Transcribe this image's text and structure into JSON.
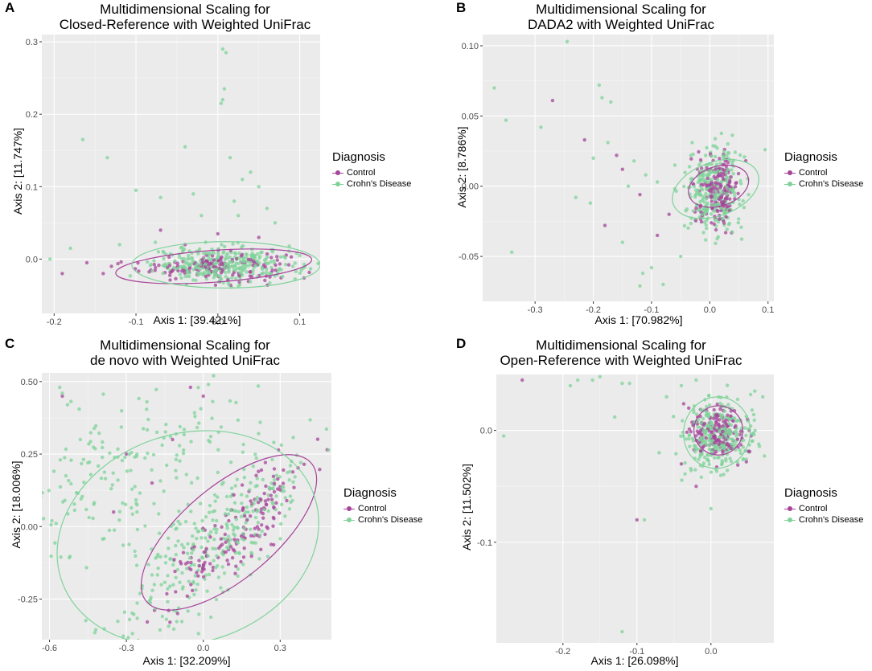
{
  "legend": {
    "title": "Diagnosis",
    "entries": [
      "Control",
      "Crohn's Disease"
    ],
    "colors": {
      "Control": "#a6449a",
      "Crohn's Disease": "#7fd39a"
    }
  },
  "chart_data": [
    {
      "type": "scatter",
      "panel": "A",
      "title_line1": "Multidimensional Scaling for",
      "title_line2": "Closed-Reference with Weighted UniFrac",
      "xlabel": "Axis 1: [39.421%]",
      "ylabel": "Axis 2: [11.747%]",
      "xlim": [
        -0.215,
        0.125
      ],
      "ylim": [
        -0.075,
        0.31
      ],
      "xticks": [
        -0.2,
        -0.1,
        0.0,
        0.1
      ],
      "xtick_labels": [
        "-0.2",
        "-0.1",
        "0.0",
        "0.1"
      ],
      "yticks": [
        0.0,
        0.1,
        0.2,
        0.3
      ],
      "ytick_labels": [
        "0.0",
        "0.1",
        "0.2",
        "0.3"
      ],
      "ellipses": [
        {
          "group": "Control",
          "cx": -0.005,
          "cy": -0.01,
          "rx": 0.12,
          "ry": 0.022,
          "angle": 4
        },
        {
          "group": "Crohn's Disease",
          "cx": 0.01,
          "cy": -0.008,
          "rx": 0.115,
          "ry": 0.032,
          "angle": 0
        }
      ],
      "clusters": [
        {
          "group": "Control",
          "n": 150,
          "cx": -0.005,
          "cy": -0.01,
          "sx": 0.045,
          "sy": 0.01,
          "angle": 0
        },
        {
          "group": "Crohn's Disease",
          "n": 340,
          "cx": 0.01,
          "cy": -0.008,
          "sx": 0.045,
          "sy": 0.012,
          "angle": 0
        }
      ],
      "points": {
        "Control": [
          [
            -0.19,
            -0.02
          ],
          [
            -0.14,
            -0.02
          ],
          [
            -0.13,
            -0.01
          ],
          [
            -0.07,
            0.04
          ],
          [
            0.0,
            0.035
          ],
          [
            -0.04,
            0.02
          ],
          [
            -0.16,
            -0.005
          ],
          [
            0.05,
            0.03
          ]
        ],
        "Crohn's Disease": [
          [
            -0.18,
            0.015
          ],
          [
            -0.165,
            0.165
          ],
          [
            -0.135,
            0.14
          ],
          [
            -0.1,
            0.095
          ],
          [
            -0.07,
            0.085
          ],
          [
            0.006,
            0.29
          ],
          [
            0.01,
            0.285
          ],
          [
            0.008,
            0.235
          ],
          [
            0.006,
            0.22
          ],
          [
            0.004,
            0.215
          ],
          [
            -0.04,
            0.155
          ],
          [
            0.03,
            0.11
          ],
          [
            0.04,
            0.12
          ],
          [
            0.05,
            0.1
          ],
          [
            0.02,
            0.08
          ],
          [
            -0.02,
            0.06
          ],
          [
            0.06,
            0.07
          ],
          [
            0.07,
            0.05
          ],
          [
            -0.205,
            0.0
          ],
          [
            -0.12,
            0.02
          ],
          [
            0.1,
            0.005
          ],
          [
            -0.03,
            0.09
          ],
          [
            0.015,
            0.14
          ],
          [
            0.025,
            0.06
          ]
        ]
      }
    },
    {
      "type": "scatter",
      "panel": "B",
      "title_line1": "Multidimensional Scaling for",
      "title_line2": "DADA2 with Weighted UniFrac",
      "xlabel": "Axis 1: [70.982%]",
      "ylabel": "Axis 2: [8.786%]",
      "xlim": [
        -0.39,
        0.11
      ],
      "ylim": [
        -0.082,
        0.108
      ],
      "xticks": [
        -0.3,
        -0.2,
        -0.1,
        0.0,
        0.1
      ],
      "xtick_labels": [
        "-0.3",
        "-0.2",
        "-0.1",
        "0.0",
        "0.1"
      ],
      "yticks": [
        -0.05,
        0.0,
        0.05,
        0.1
      ],
      "ytick_labels": [
        "-0.05",
        "0.00",
        "0.05",
        "0.10"
      ],
      "ellipses": [
        {
          "group": "Control",
          "cx": 0.015,
          "cy": 0.0,
          "rx": 0.034,
          "ry": 0.022,
          "angle": -72
        },
        {
          "group": "Crohn's Disease",
          "cx": 0.01,
          "cy": -0.002,
          "rx": 0.046,
          "ry": 0.032,
          "angle": -70
        }
      ],
      "clusters": [
        {
          "group": "Control",
          "n": 180,
          "cx": 0.015,
          "cy": -0.002,
          "sx": 0.018,
          "sy": 0.012,
          "angle": 0
        },
        {
          "group": "Crohn's Disease",
          "n": 280,
          "cx": 0.005,
          "cy": -0.004,
          "sx": 0.025,
          "sy": 0.016,
          "angle": 0
        }
      ],
      "points": {
        "Control": [
          [
            -0.27,
            0.061
          ],
          [
            -0.215,
            0.033
          ],
          [
            -0.16,
            0.022
          ],
          [
            -0.15,
            0.012
          ],
          [
            -0.12,
            -0.006
          ],
          [
            -0.07,
            -0.02
          ],
          [
            -0.09,
            -0.035
          ],
          [
            -0.18,
            -0.028
          ]
        ],
        "Crohn's Disease": [
          [
            -0.37,
            0.07
          ],
          [
            -0.35,
            0.047
          ],
          [
            -0.34,
            -0.047
          ],
          [
            -0.29,
            0.042
          ],
          [
            -0.245,
            0.103
          ],
          [
            -0.23,
            -0.008
          ],
          [
            -0.205,
            -0.012
          ],
          [
            -0.19,
            0.072
          ],
          [
            -0.185,
            0.063
          ],
          [
            -0.175,
            0.031
          ],
          [
            -0.17,
            0.06
          ],
          [
            -0.13,
            0.018
          ],
          [
            -0.12,
            -0.071
          ],
          [
            -0.115,
            -0.062
          ],
          [
            -0.1,
            -0.058
          ],
          [
            -0.08,
            -0.07
          ],
          [
            0.095,
            0.026
          ],
          [
            -0.2,
            0.02
          ],
          [
            -0.14,
            0.0
          ],
          [
            -0.06,
            0.015
          ],
          [
            -0.05,
            -0.05
          ],
          [
            -0.15,
            -0.04
          ],
          [
            -0.11,
            0.008
          ],
          [
            -0.09,
            0.003
          ]
        ]
      }
    },
    {
      "type": "scatter",
      "panel": "C",
      "title_line1": "Multidimensional Scaling for",
      "title_line2": "de novo with Weighted UniFrac",
      "xlabel": "Axis 1: [32.209%]",
      "ylabel": "Axis 2: [18.006%]",
      "xlim": [
        -0.63,
        0.5
      ],
      "ylim": [
        -0.39,
        0.53
      ],
      "xticks": [
        -0.6,
        -0.3,
        0.0,
        0.3
      ],
      "xtick_labels": [
        "-0.6",
        "-0.3",
        "0.0",
        "0.3"
      ],
      "yticks": [
        -0.25,
        0.0,
        0.25,
        0.5
      ],
      "ytick_labels": [
        "-0.25",
        "0.00",
        "0.25",
        "0.50"
      ],
      "ellipses": [
        {
          "group": "Control",
          "cx": 0.1,
          "cy": -0.02,
          "rx": 0.42,
          "ry": 0.16,
          "angle": 40
        },
        {
          "group": "Crohn's Disease",
          "cx": -0.06,
          "cy": -0.04,
          "rx": 0.52,
          "ry": 0.36,
          "angle": 18
        }
      ],
      "clusters": [
        {
          "group": "Control",
          "n": 160,
          "cx": 0.15,
          "cy": 0.0,
          "sx": 0.19,
          "sy": 0.05,
          "angle": 42
        },
        {
          "group": "Crohn's Disease",
          "n": 300,
          "cx": 0.05,
          "cy": -0.04,
          "sx": 0.22,
          "sy": 0.08,
          "angle": 40
        },
        {
          "group": "Crohn's Disease",
          "n": 110,
          "cx": -0.38,
          "cy": 0.15,
          "sx": 0.12,
          "sy": 0.16,
          "angle": -60
        },
        {
          "group": "Crohn's Disease",
          "n": 60,
          "cx": -0.12,
          "cy": 0.3,
          "sx": 0.22,
          "sy": 0.08,
          "angle": 0
        }
      ],
      "points": {
        "Control": [
          [
            -0.55,
            0.45
          ],
          [
            -0.3,
            0.25
          ],
          [
            -0.12,
            0.3
          ],
          [
            -0.05,
            0.48
          ],
          [
            0.0,
            0.45
          ],
          [
            -0.2,
            0.15
          ],
          [
            -0.35,
            0.05
          ],
          [
            -0.13,
            -0.33
          ],
          [
            -0.1,
            -0.3
          ]
        ],
        "Crohn's Disease": [
          [
            -0.56,
            0.48
          ],
          [
            -0.55,
            0.46
          ],
          [
            -0.53,
            0.42
          ],
          [
            0.04,
            0.52
          ],
          [
            -0.22,
            0.43
          ],
          [
            0.02,
            0.49
          ],
          [
            -0.48,
            0.3
          ],
          [
            -0.45,
            0.22
          ]
        ]
      }
    },
    {
      "type": "scatter",
      "panel": "D",
      "title_line1": "Multidimensional Scaling for",
      "title_line2": "Open-Reference with Weighted UniFrac",
      "xlabel": "Axis 1: [26.098%]",
      "ylabel": "Axis 2: [11.502%]",
      "xlim": [
        -0.29,
        0.085
      ],
      "ylim": [
        -0.19,
        0.05
      ],
      "xticks": [
        -0.2,
        -0.1,
        0.0
      ],
      "xtick_labels": [
        "-0.2",
        "-0.1",
        "0.0"
      ],
      "yticks": [
        -0.1,
        0.0
      ],
      "ytick_labels": [
        "-0.1",
        "0.0"
      ],
      "ellipses": [
        {
          "group": "Control",
          "cx": 0.01,
          "cy": 0.0,
          "rx": 0.033,
          "ry": 0.022,
          "angle": 0
        },
        {
          "group": "Crohn's Disease",
          "cx": 0.008,
          "cy": -0.002,
          "rx": 0.045,
          "ry": 0.032,
          "angle": -10
        }
      ],
      "clusters": [
        {
          "group": "Control",
          "n": 170,
          "cx": 0.01,
          "cy": -0.002,
          "sx": 0.018,
          "sy": 0.012,
          "angle": 0
        },
        {
          "group": "Crohn's Disease",
          "n": 300,
          "cx": 0.008,
          "cy": -0.004,
          "sx": 0.025,
          "sy": 0.017,
          "angle": 0
        }
      ],
      "points": {
        "Control": [
          [
            -0.255,
            0.045
          ],
          [
            -0.1,
            -0.08
          ],
          [
            -0.04,
            -0.03
          ],
          [
            -0.03,
            0.02
          ],
          [
            -0.02,
            -0.05
          ]
        ],
        "Crohn's Disease": [
          [
            -0.28,
            -0.005
          ],
          [
            -0.19,
            0.04
          ],
          [
            -0.18,
            0.045
          ],
          [
            -0.16,
            0.045
          ],
          [
            -0.15,
            0.048
          ],
          [
            -0.12,
            0.042
          ],
          [
            -0.11,
            0.042
          ],
          [
            -0.13,
            0.012
          ],
          [
            -0.12,
            -0.18
          ],
          [
            -0.09,
            -0.08
          ],
          [
            -0.06,
            0.03
          ],
          [
            0.07,
            0.03
          ],
          [
            -0.04,
            0.04
          ],
          [
            -0.02,
            0.045
          ],
          [
            0.0,
            -0.07
          ],
          [
            -0.07,
            -0.02
          ]
        ]
      }
    }
  ]
}
